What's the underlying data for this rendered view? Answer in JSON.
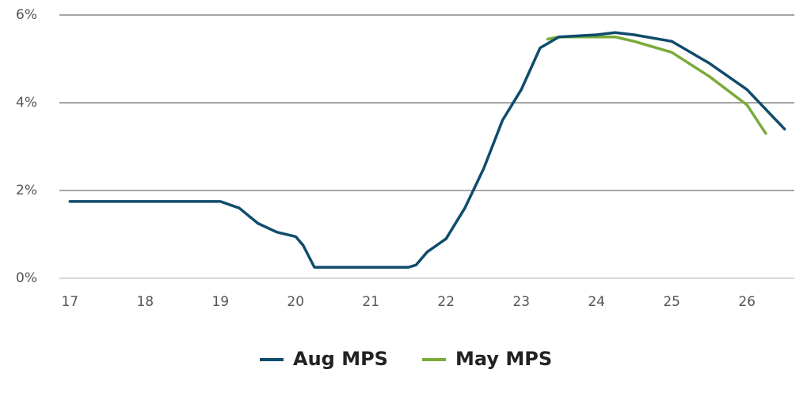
{
  "chart_data": {
    "type": "line",
    "series": [
      {
        "name": "Aug MPS",
        "color": "#0f4c6b",
        "x": [
          17,
          19,
          19.25,
          19.5,
          19.75,
          20,
          20.1,
          20.25,
          21.5,
          21.6,
          21.75,
          22,
          22.25,
          22.5,
          22.75,
          23,
          23.25,
          23.5,
          24,
          24.25,
          24.5,
          25,
          25.5,
          26,
          26.5
        ],
        "values": [
          1.75,
          1.75,
          1.6,
          1.25,
          1.05,
          0.95,
          0.75,
          0.25,
          0.25,
          0.3,
          0.6,
          0.9,
          1.6,
          2.5,
          3.6,
          4.3,
          5.25,
          5.5,
          5.55,
          5.6,
          5.55,
          5.4,
          4.9,
          4.3,
          3.4
        ]
      },
      {
        "name": "May MPS",
        "color": "#7aaa3a",
        "x": [
          23.35,
          23.5,
          24.25,
          24.5,
          25,
          25.5,
          26,
          26.25
        ],
        "values": [
          5.45,
          5.5,
          5.5,
          5.4,
          5.15,
          4.6,
          3.95,
          3.3
        ]
      }
    ],
    "xlim": [
      16.86,
      26.63
    ],
    "xticks": [
      17,
      18,
      19,
      20,
      21,
      22,
      23,
      24,
      25,
      26
    ],
    "ylim": [
      0,
      6
    ],
    "yticks": [
      {
        "value": 0,
        "label": "0%"
      },
      {
        "value": 2,
        "label": "2%"
      },
      {
        "value": 4,
        "label": "4%"
      },
      {
        "value": 6,
        "label": "6%"
      }
    ],
    "grid": true,
    "legend": "bottom"
  }
}
